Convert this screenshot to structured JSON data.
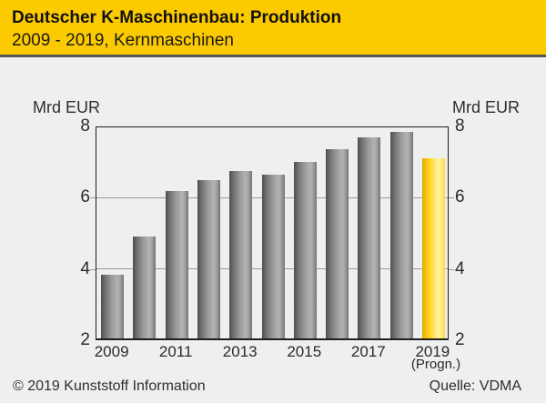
{
  "header": {
    "title": "Deutscher K-Maschinenbau: Produktion",
    "subtitle": "2009 - 2019, Kernmaschinen"
  },
  "axes": {
    "left_unit": "Mrd EUR",
    "right_unit": "Mrd EUR"
  },
  "footer": {
    "copyright": "© 2019 Kunststoff Information",
    "source": "Quelle: VDMA"
  },
  "colors": {
    "header_bg": "#FCCA00",
    "divider": "#54565A",
    "grid": "#9B9B9B",
    "bar_gray_mid": "#8A8A8C",
    "bar_highlight": "#FFD419",
    "background": "#EEEFEF"
  },
  "chart_data": {
    "type": "bar",
    "title": "Deutscher K-Maschinenbau: Produktion",
    "subtitle": "2009 - 2019, Kernmaschinen",
    "ylabel": "Mrd EUR",
    "categories": [
      "2009",
      "2010",
      "2011",
      "2012",
      "2013",
      "2014",
      "2015",
      "2016",
      "2017",
      "2018",
      "2019"
    ],
    "values": [
      3.85,
      4.9,
      6.2,
      6.5,
      6.75,
      6.65,
      7.0,
      7.35,
      7.7,
      7.85,
      7.1
    ],
    "highlight_index": 10,
    "highlight_note": "(Progn.)",
    "ylim": [
      2,
      8
    ],
    "yticks": [
      2,
      4,
      6,
      8
    ],
    "gridlines": [
      4,
      6
    ],
    "xtick_labels": [
      "2009",
      "2011",
      "2013",
      "2015",
      "2017",
      "2019"
    ],
    "grid": "horizontal-only",
    "legend": "none",
    "source": "VDMA"
  }
}
